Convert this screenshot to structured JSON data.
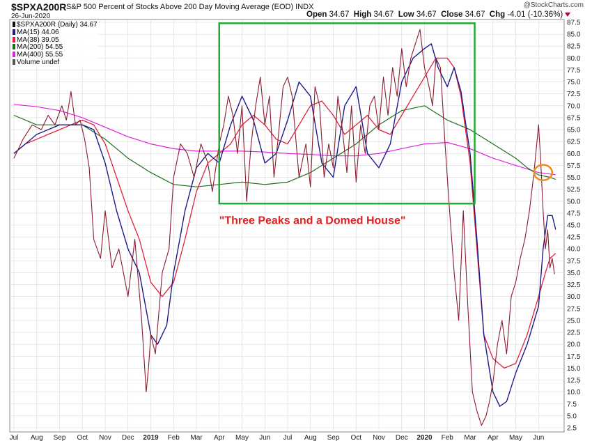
{
  "header": {
    "symbol": "$SPXA200R",
    "description": "S&P 500 Percent of Stocks Above 200 Day Moving Average (EOD)",
    "exchange": "INDX",
    "date": "26-Jun-2020",
    "watermark": "@StockCharts.com",
    "open_label": "Open",
    "open": "34.67",
    "high_label": "High",
    "high": "34.67",
    "low_label": "Low",
    "low": "34.67",
    "close_label": "Close",
    "close": "34.67",
    "chg_label": "Chg",
    "chg": "-4.01 (-10.36%)"
  },
  "legend": [
    {
      "label": "$SPXA200R (Daily) 34.67",
      "color": "#111111"
    },
    {
      "label": "MA(15) 44.06",
      "color": "#1a1a8c"
    },
    {
      "label": "MA(38) 39.05",
      "color": "#e0203a"
    },
    {
      "label": "MA(200) 54.55",
      "color": "#1a6e1a"
    },
    {
      "label": "MA(400) 55.55",
      "color": "#e020e0"
    },
    {
      "label": "Volume undef",
      "color": "#555555"
    }
  ],
  "annotation": "\"Three Peaks and a Domed House\"",
  "colors": {
    "price": "#8b1a2e",
    "ma15": "#1a1a8c",
    "ma38": "#e0203a",
    "ma200": "#1a6e1a",
    "ma400": "#e020e0",
    "box": "#22aa33",
    "circle": "#f08a1c",
    "grid": "#d9d9d9"
  },
  "chart_data": {
    "type": "line",
    "title": "$SPXA200R",
    "ylabel": "",
    "xlabel": "",
    "ylim": [
      2.5,
      87.5
    ],
    "y_ticks": [
      2.5,
      5.0,
      7.5,
      10.0,
      12.5,
      15.0,
      17.5,
      20.0,
      22.5,
      25.0,
      27.5,
      30.0,
      32.5,
      35.0,
      37.5,
      40.0,
      42.5,
      45.0,
      47.5,
      50.0,
      52.5,
      55.0,
      57.5,
      60.0,
      62.5,
      65.0,
      67.5,
      70.0,
      72.5,
      75.0,
      77.5,
      80.0,
      82.5,
      85.0,
      87.5
    ],
    "x_ticks": [
      "Jul",
      "Aug",
      "Sep",
      "Oct",
      "Nov",
      "Dec",
      "2019",
      "Feb",
      "Mar",
      "Apr",
      "May",
      "Jun",
      "Jul",
      "Aug",
      "Sep",
      "Oct",
      "Nov",
      "Dec",
      "2020",
      "Feb",
      "Mar",
      "Apr",
      "May",
      "Jun"
    ],
    "x_index_range": [
      0,
      24
    ],
    "series": [
      {
        "name": "$SPXA200R (Daily)",
        "key": "price",
        "x": [
          0,
          0.4,
          0.8,
          1.2,
          1.5,
          1.8,
          2.1,
          2.3,
          2.5,
          2.7,
          2.9,
          3.1,
          3.3,
          3.5,
          3.8,
          4.0,
          4.3,
          4.6,
          5.0,
          5.3,
          5.6,
          5.8,
          5.9,
          6.0,
          6.2,
          6.5,
          6.8,
          7.0,
          7.3,
          7.6,
          7.9,
          8.2,
          8.5,
          8.7,
          9.0,
          9.2,
          9.4,
          9.6,
          9.8,
          10.0,
          10.2,
          10.4,
          10.6,
          10.8,
          11.0,
          11.2,
          11.4,
          11.6,
          11.8,
          12.0,
          12.2,
          12.5,
          12.8,
          13.0,
          13.2,
          13.4,
          13.6,
          13.8,
          14.0,
          14.2,
          14.4,
          14.6,
          14.8,
          15.0,
          15.2,
          15.4,
          15.6,
          15.8,
          16.0,
          16.2,
          16.4,
          16.6,
          16.8,
          17.0,
          17.2,
          17.4,
          17.6,
          17.8,
          18.0,
          18.2,
          18.35,
          18.5,
          18.7,
          18.9,
          19.1,
          19.3,
          19.5,
          19.7,
          19.9,
          20.1,
          20.3,
          20.5,
          20.7,
          20.85,
          21.0,
          21.2,
          21.4,
          21.6,
          21.8,
          22.0,
          22.2,
          22.4,
          22.6,
          22.8,
          23.0,
          23.1,
          23.2,
          23.3,
          23.4,
          23.5,
          23.6,
          23.7
        ],
        "values": [
          59,
          63,
          66,
          65,
          68,
          66,
          70,
          67,
          73,
          66,
          67,
          63,
          57,
          42,
          38,
          48,
          36,
          40,
          30,
          42,
          25,
          10,
          15,
          22,
          18,
          35,
          40,
          55,
          62,
          60,
          55,
          62,
          58,
          52,
          62,
          66,
          72,
          68,
          60,
          70,
          50,
          62,
          70,
          76,
          66,
          72,
          55,
          64,
          74,
          76,
          72,
          55,
          62,
          53,
          74,
          70,
          55,
          62,
          57,
          72,
          65,
          56,
          70,
          54,
          66,
          60,
          70,
          72,
          65,
          76,
          68,
          78,
          72,
          82,
          74,
          80,
          83,
          86,
          78,
          74,
          70,
          80,
          78,
          62,
          48,
          35,
          25,
          48,
          28,
          10,
          6,
          3,
          5,
          8,
          12,
          20,
          25,
          18,
          30,
          33,
          38,
          42,
          48,
          56,
          66,
          58,
          48,
          40,
          44,
          36,
          38,
          34.67
        ]
      },
      {
        "name": "MA(15)",
        "key": "ma15",
        "x": [
          0,
          0.5,
          1.0,
          1.5,
          2.0,
          2.5,
          3.0,
          3.5,
          4.0,
          4.5,
          5.0,
          5.5,
          6.0,
          6.3,
          6.7,
          7.0,
          7.5,
          8.0,
          8.5,
          9.0,
          9.5,
          10.0,
          10.5,
          11.0,
          11.5,
          12.0,
          12.5,
          13.0,
          13.5,
          14.0,
          14.5,
          15.0,
          15.5,
          16.0,
          16.5,
          17.0,
          17.5,
          18.0,
          18.3,
          18.6,
          19.0,
          19.3,
          19.6,
          20.0,
          20.3,
          20.6,
          21.0,
          21.3,
          21.6,
          22.0,
          22.5,
          23.0,
          23.2,
          23.4,
          23.6,
          23.75
        ],
        "values": [
          60,
          62,
          64,
          65,
          66,
          66,
          66,
          65,
          58,
          48,
          40,
          35,
          22,
          20,
          24,
          35,
          48,
          57,
          60,
          58,
          66,
          72,
          67,
          58,
          60,
          67,
          75,
          72,
          58,
          55,
          70,
          74,
          60,
          57,
          62,
          75,
          80,
          82,
          83,
          78,
          74,
          78,
          73,
          60,
          42,
          22,
          10,
          7,
          8,
          14,
          20,
          28,
          40,
          47,
          47,
          44.06
        ]
      },
      {
        "name": "MA(38)",
        "key": "ma38",
        "x": [
          0,
          0.5,
          1.0,
          1.5,
          2.0,
          2.5,
          3.0,
          3.5,
          4.0,
          4.5,
          5.0,
          5.5,
          6.0,
          6.5,
          7.0,
          7.5,
          8.0,
          8.5,
          9.0,
          9.5,
          10.0,
          10.5,
          11.0,
          11.5,
          12.0,
          12.5,
          13.0,
          13.5,
          14.0,
          14.5,
          15.0,
          15.5,
          16.0,
          16.5,
          17.0,
          17.5,
          18.0,
          18.5,
          19.0,
          19.3,
          19.6,
          20.0,
          20.3,
          20.6,
          21.0,
          21.5,
          22.0,
          22.5,
          23.0,
          23.3,
          23.5,
          23.75
        ],
        "values": [
          60,
          62,
          63,
          64,
          65,
          66,
          67,
          66,
          62,
          55,
          48,
          42,
          33,
          30,
          33,
          42,
          52,
          58,
          60,
          62,
          66,
          68,
          66,
          63,
          62,
          66,
          70,
          71,
          68,
          64,
          66,
          68,
          65,
          64,
          68,
          72,
          76,
          80,
          80,
          78,
          72,
          58,
          40,
          22,
          17,
          15,
          16,
          22,
          30,
          35,
          38,
          39.05
        ]
      },
      {
        "name": "MA(200)",
        "key": "ma200",
        "x": [
          0,
          1,
          2,
          3,
          4,
          5,
          6,
          7,
          8,
          9,
          10,
          11,
          12,
          13,
          14,
          15,
          16,
          17,
          18,
          19,
          20,
          21,
          22,
          22.5,
          23,
          23.5,
          23.75
        ],
        "values": [
          68,
          66,
          66,
          66,
          63,
          59,
          56,
          53.5,
          53,
          53.5,
          54,
          53.5,
          54,
          56,
          59,
          62,
          66,
          69,
          70,
          67,
          65,
          62,
          59,
          57,
          55.5,
          55,
          54.55
        ]
      },
      {
        "name": "MA(400)",
        "key": "ma400",
        "x": [
          0,
          1,
          2,
          3,
          4,
          5,
          6,
          7,
          8,
          9,
          10,
          11,
          12,
          13,
          14,
          15,
          16,
          17,
          18,
          19,
          20,
          21,
          22,
          23,
          23.75
        ],
        "values": [
          70.3,
          69.8,
          69,
          67.5,
          65.5,
          63.5,
          62,
          61,
          60.5,
          60.5,
          60.5,
          60.3,
          60,
          59.8,
          59.5,
          59.5,
          60,
          61,
          62,
          62.3,
          61,
          59,
          57.5,
          56,
          55.55
        ]
      }
    ]
  }
}
